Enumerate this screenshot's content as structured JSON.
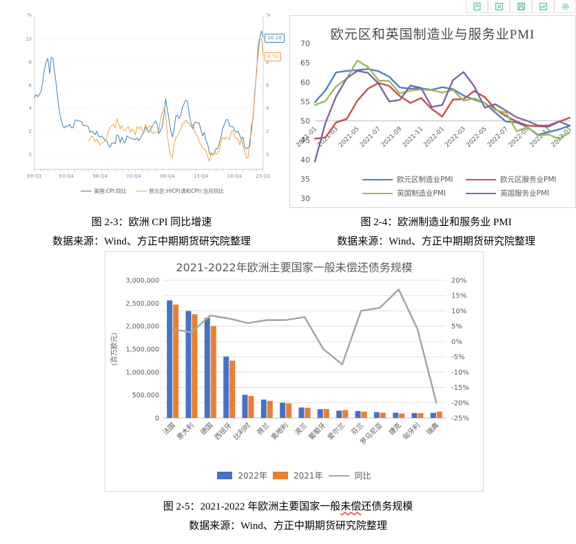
{
  "toolbar": {
    "color": "#45bd9b",
    "icons": [
      "copy",
      "excel-export",
      "save",
      "edit-chart",
      "settings"
    ]
  },
  "figures": {
    "fig23": {
      "caption": "图 2-3：欧洲 CPI 同比增速",
      "source": "数据来源：Wind、方正中期期货研究院整理"
    },
    "fig24": {
      "caption": "图 2-4：欧洲制造业和服务业 PMI",
      "source": "数据来源：Wind、方正中期期货研究院整理"
    },
    "fig25": {
      "caption_prefix": "图 2-5：2021-2022 年欧洲主要国家一般",
      "caption_marked": "未偿",
      "caption_suffix": "还债务规模",
      "source": "数据来源：Wind、方正中期期货研究院整理"
    }
  },
  "chart_data": [
    {
      "id": "cpi",
      "type": "line",
      "unit": "%",
      "ylim": [
        -1.3,
        11.7
      ],
      "y_ticks": [
        0,
        2,
        4,
        6,
        8,
        10
      ],
      "n_points": 137,
      "x_tick_labels": [
        "89-Q1",
        "93-Q4",
        "98-Q4",
        "03-Q4",
        "08-Q4",
        "13-Q4",
        "18-Q4",
        "23-Q1"
      ],
      "x_tick_index": [
        0,
        19,
        39,
        59,
        79,
        99,
        119,
        136
      ],
      "series": [
        {
          "name": "英国:CPI:同比",
          "color": "#3e7fb0",
          "start_index": 0,
          "values": [
            4.9,
            5.2,
            5.0,
            5.2,
            5.5,
            6.4,
            7.4,
            8.0,
            8.3,
            7.0,
            8.4,
            8.3,
            7.1,
            6.0,
            4.6,
            3.6,
            2.9,
            2.4,
            2.3,
            2.5,
            2.4,
            2.6,
            2.3,
            2.3,
            2.9,
            3.0,
            2.9,
            2.9,
            2.8,
            2.5,
            2.5,
            2.5,
            2.4,
            1.9,
            2.0,
            1.9,
            1.7,
            2.0,
            1.6,
            1.5,
            1.6,
            1.4,
            1.2,
            1.2,
            0.8,
            0.6,
            1.0,
            1.0,
            0.9,
            1.7,
            1.6,
            1.0,
            1.5,
            1.1,
            1.0,
            1.6,
            1.5,
            1.4,
            1.4,
            1.3,
            1.3,
            1.4,
            1.2,
            1.4,
            1.7,
            1.9,
            2.4,
            2.1,
            1.9,
            2.2,
            2.4,
            2.7,
            2.9,
            2.6,
            1.8,
            2.1,
            2.4,
            3.4,
            4.8,
            3.9,
            3.0,
            2.1,
            1.5,
            2.1,
            3.3,
            3.4,
            3.1,
            3.4,
            4.1,
            4.4,
            4.7,
            4.6,
            3.5,
            2.8,
            2.2,
            2.7,
            2.8,
            2.7,
            2.7,
            2.1,
            1.6,
            1.9,
            1.2,
            0.9,
            0.1,
            0.0,
            0.0,
            0.1,
            0.5,
            0.5,
            1.0,
            1.6,
            2.3,
            2.6,
            3.0,
            3.0,
            2.5,
            2.4,
            2.4,
            2.1,
            1.9,
            2.0,
            1.7,
            1.3,
            1.5,
            0.6,
            0.5,
            0.6,
            0.7,
            2.5,
            3.1,
            5.4,
            7.0,
            9.4,
            10.1,
            10.7,
            10.1
          ]
        },
        {
          "name": "欧元区:HICP(调和CPI):当月同比",
          "color": "#f2a23c",
          "start_index": 32,
          "values": [
            1.2,
            1.3,
            1.6,
            1.5,
            1.1,
            1.3,
            1.1,
            0.8,
            1.0,
            1.0,
            1.2,
            1.5,
            2.0,
            2.4,
            2.5,
            2.6,
            2.3,
            3.1,
            2.7,
            2.2,
            2.5,
            2.1,
            2.1,
            2.3,
            2.4,
            1.9,
            2.2,
            2.0,
            1.7,
            2.4,
            2.2,
            2.4,
            2.1,
            2.0,
            2.6,
            2.2,
            2.4,
            2.5,
            1.8,
            1.9,
            1.9,
            1.9,
            2.1,
            3.1,
            3.6,
            4.0,
            3.6,
            1.6,
            0.6,
            -0.1,
            -0.3,
            0.9,
            1.4,
            1.6,
            1.9,
            2.2,
            2.7,
            2.7,
            3.0,
            2.7,
            2.7,
            2.4,
            2.6,
            2.2,
            1.7,
            1.6,
            1.1,
            0.8,
            0.5,
            0.5,
            0.3,
            -0.2,
            -0.6,
            0.2,
            -0.1,
            0.2,
            0.0,
            0.1,
            0.4,
            1.1,
            1.5,
            1.3,
            1.5,
            1.4,
            1.3,
            2.0,
            2.1,
            1.5,
            1.4,
            1.3,
            0.8,
            1.3,
            0.7,
            0.3,
            -0.3,
            -0.3,
            1.3,
            1.9,
            3.4,
            5.0,
            7.4,
            8.6,
            9.9,
            10.0,
            8.5
          ]
        }
      ],
      "end_labels": [
        {
          "text": "10.10",
          "value": 10.1,
          "color": "#3e7fb0"
        },
        {
          "text": "8.50",
          "value": 8.5,
          "color": "#f2a23c"
        }
      ]
    },
    {
      "id": "pmi",
      "type": "line",
      "title": "欧元区和英国制造业与服务业PMI",
      "ylim": [
        30,
        70
      ],
      "y_ticks": [
        70,
        65,
        60,
        55,
        50,
        45,
        40,
        35,
        30
      ],
      "axis_cross": 50,
      "n_points": 25,
      "x_tick_labels": [
        "2021-01",
        "2021-03",
        "2021-05",
        "2021-07",
        "2021-09",
        "2021-11",
        "2022-01",
        "2022-03",
        "2022-05",
        "2022-07",
        "2022-09",
        "2022-11",
        "2023-01"
      ],
      "series": [
        {
          "name": "欧元区制造业PMI",
          "color": "#4f81bd",
          "values": [
            54.8,
            57.9,
            62.5,
            62.9,
            63.1,
            63.4,
            62.8,
            61.4,
            58.6,
            58.3,
            58.4,
            58.0,
            58.7,
            58.2,
            56.5,
            55.5,
            54.6,
            52.1,
            49.8,
            49.6,
            48.4,
            46.4,
            47.1,
            47.8,
            48.8
          ]
        },
        {
          "name": "欧元区服务业PMI",
          "color": "#c0504d",
          "values": [
            45.4,
            45.7,
            49.6,
            50.5,
            55.2,
            58.3,
            59.8,
            59.0,
            56.4,
            54.6,
            55.9,
            53.1,
            51.1,
            55.5,
            55.6,
            57.7,
            56.1,
            53.0,
            51.2,
            49.8,
            48.8,
            48.6,
            48.5,
            49.8,
            50.8
          ]
        },
        {
          "name": "英国制造业PMI",
          "color": "#9bbb59",
          "values": [
            54.1,
            55.1,
            58.9,
            60.9,
            65.6,
            63.9,
            60.4,
            60.3,
            57.1,
            57.8,
            58.1,
            57.9,
            57.3,
            58.0,
            55.2,
            55.8,
            54.6,
            52.8,
            52.1,
            47.3,
            48.4,
            46.2,
            46.5,
            45.3,
            47.0
          ]
        },
        {
          "name": "英国服务业PMI",
          "color": "#8064a2",
          "values": [
            39.5,
            49.5,
            56.3,
            61.0,
            62.9,
            62.4,
            59.6,
            55.0,
            55.4,
            59.1,
            58.5,
            53.6,
            54.1,
            60.5,
            62.6,
            58.9,
            53.4,
            54.3,
            52.6,
            50.9,
            50.0,
            48.8,
            48.8,
            49.9,
            48.7
          ]
        }
      ]
    },
    {
      "id": "debt",
      "type": "bar",
      "title": "2021-2022年欧洲主要国家一般未偿还债务规模",
      "ylabel_left": "(百万欧元)",
      "ylim_left": [
        0,
        3000000
      ],
      "left_ticks": [
        0,
        500000,
        1000000,
        1500000,
        2000000,
        2500000,
        3000000
      ],
      "ylim_right": [
        -25,
        20
      ],
      "right_ticks": [
        20,
        15,
        10,
        5,
        0,
        -5,
        -10,
        -15,
        -20,
        -25
      ],
      "categories": [
        "法国",
        "意大利",
        "德国",
        "西班牙",
        "比利时",
        "荷兰",
        "奥地利",
        "波兰",
        "葡萄牙",
        "爱尔兰",
        "芬兰",
        "罗马尼亚",
        "捷克",
        "匈牙利",
        "瑞典"
      ],
      "series": [
        {
          "name": "2022年",
          "kind": "bar",
          "color": "#4472c4",
          "values": [
            2560000,
            2330000,
            2180000,
            1340000,
            505000,
            400000,
            335000,
            230000,
            190000,
            160000,
            152000,
            128000,
            115000,
            110000,
            112000
          ]
        },
        {
          "name": "2021年",
          "kind": "bar",
          "color": "#ed7d31",
          "values": [
            2470000,
            2260000,
            2005000,
            1250000,
            478000,
            373000,
            318000,
            222000,
            195000,
            173000,
            138000,
            115000,
            98000,
            106000,
            140000
          ]
        },
        {
          "name": "同比",
          "kind": "line",
          "color": "#a5a5a5",
          "axis": "right",
          "values": [
            4.0,
            3.0,
            8.5,
            7.5,
            6.0,
            7.0,
            7.0,
            8.0,
            -2.5,
            -7.5,
            10.0,
            11.0,
            17.0,
            4.0,
            -20.0
          ]
        }
      ]
    }
  ]
}
